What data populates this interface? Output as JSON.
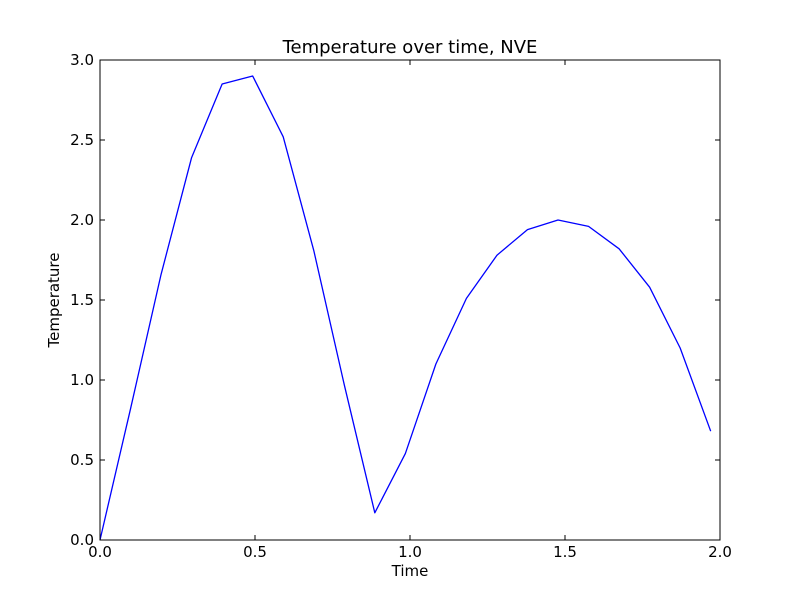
{
  "chart_data": {
    "type": "line",
    "title": "Temperature over time, NVE",
    "xlabel": "Time",
    "ylabel": "Temperature",
    "xlim": [
      0.0,
      2.0
    ],
    "ylim": [
      0.0,
      3.0
    ],
    "xticks": [
      0.0,
      0.5,
      1.0,
      1.5,
      2.0
    ],
    "xtick_labels": [
      "0.0",
      "0.5",
      "1.0",
      "1.5",
      "2.0"
    ],
    "yticks": [
      0.0,
      0.5,
      1.0,
      1.5,
      2.0,
      2.5,
      3.0
    ],
    "ytick_labels": [
      "0.0",
      "0.5",
      "1.0",
      "1.5",
      "2.0",
      "2.5",
      "3.0"
    ],
    "grid": false,
    "series": [
      {
        "color": "#0000ff",
        "x": [
          0.0,
          0.0985,
          0.197,
          0.2955,
          0.394,
          0.4925,
          0.591,
          0.6895,
          0.788,
          0.8865,
          0.985,
          1.0835,
          1.182,
          1.2805,
          1.379,
          1.4775,
          1.576,
          1.6745,
          1.773,
          1.8715,
          1.97
        ],
        "y": [
          0.0,
          0.82,
          1.66,
          2.39,
          2.85,
          2.9,
          2.52,
          1.81,
          0.97,
          0.17,
          0.54,
          1.1,
          1.51,
          1.78,
          1.94,
          2.0,
          1.96,
          1.82,
          1.58,
          1.2,
          0.68
        ]
      }
    ]
  }
}
